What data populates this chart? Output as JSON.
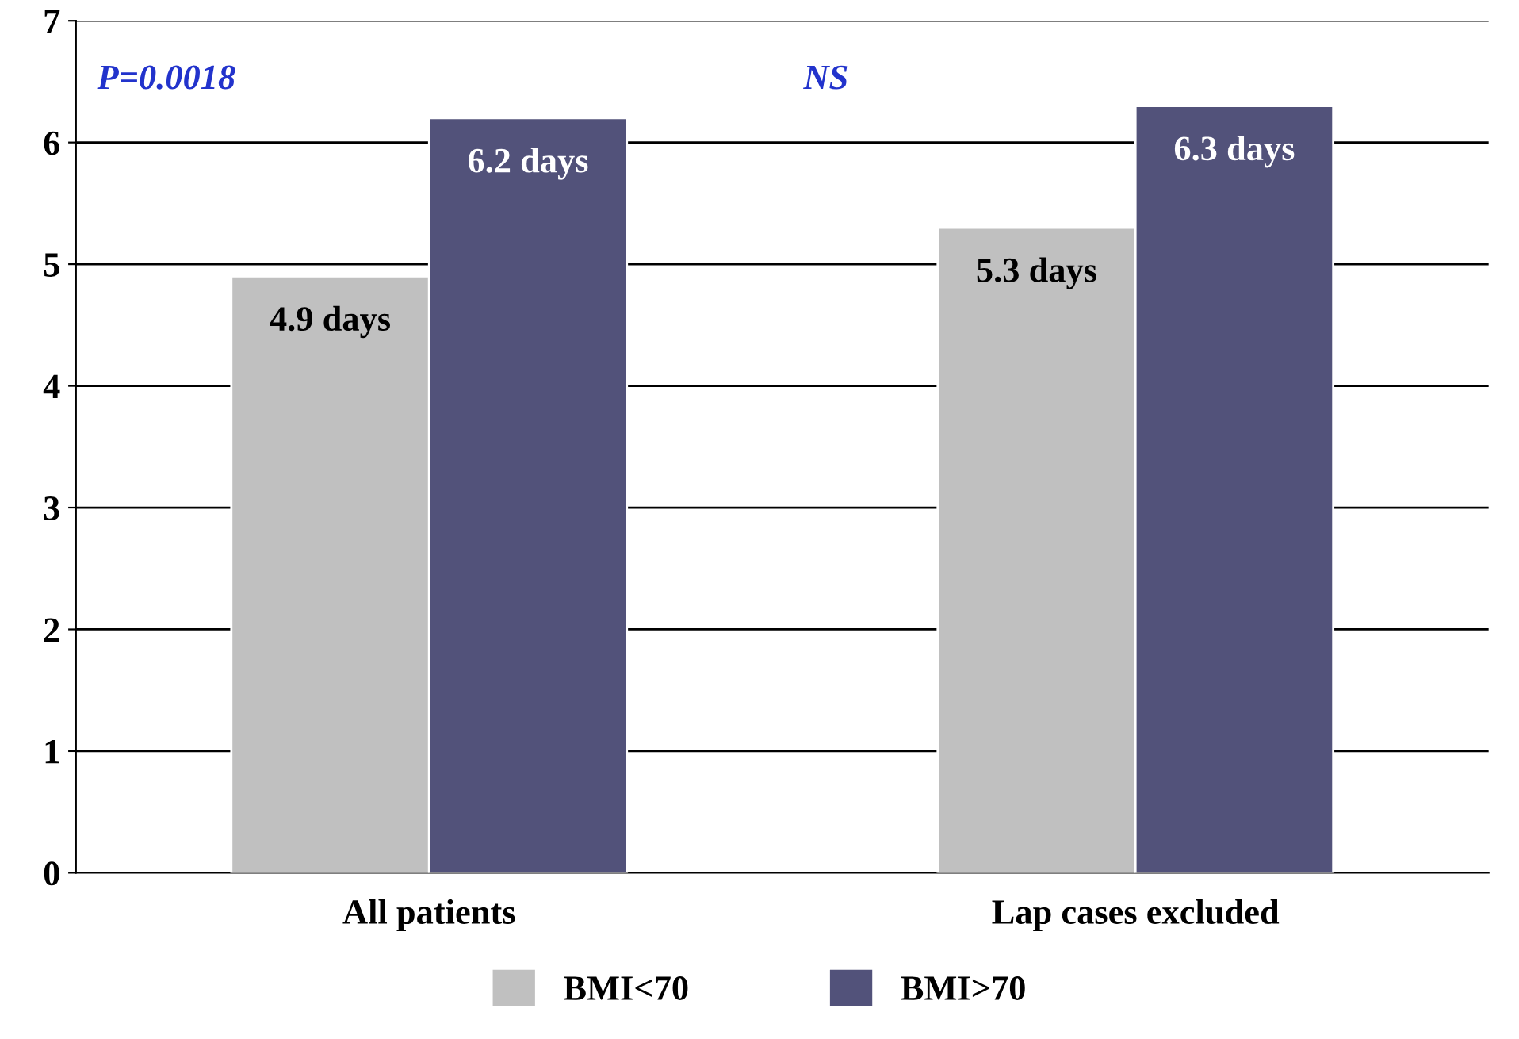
{
  "chart_data": {
    "type": "bar",
    "categories": [
      "All patients",
      "Lap cases excluded"
    ],
    "series": [
      {
        "name": "BMI<70",
        "color": "#c0c0c0",
        "values": [
          4.9,
          5.3
        ],
        "value_labels": [
          "4.9 days",
          "5.3 days"
        ]
      },
      {
        "name": "BMI>70",
        "color": "#52527a",
        "values": [
          6.2,
          6.3
        ],
        "value_labels": [
          "6.2 days",
          "6.3 days"
        ]
      }
    ],
    "annotations": [
      "P=0.0018",
      "NS"
    ],
    "ylim": [
      0,
      7
    ],
    "yticks": [
      0,
      1,
      2,
      3,
      4,
      5,
      6,
      7
    ],
    "grid": "y",
    "legend": "bottom"
  }
}
